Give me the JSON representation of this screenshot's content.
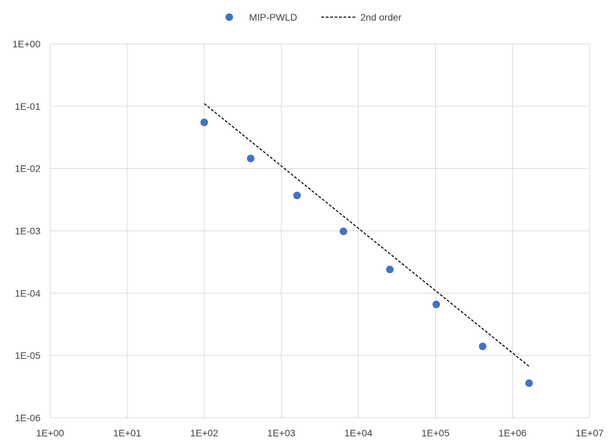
{
  "chart_data": {
    "type": "scatter",
    "xscale": "log",
    "yscale": "log",
    "xlim": [
      1,
      10000000
    ],
    "ylim": [
      1e-06,
      1
    ],
    "xticks": [
      "1E+00",
      "1E+01",
      "1E+02",
      "1E+03",
      "1E+04",
      "1E+05",
      "1E+06",
      "1E+07"
    ],
    "yticks": [
      "1E+00",
      "1E-01",
      "1E-02",
      "1E-03",
      "1E-04",
      "1E-05",
      "1E-06"
    ],
    "grid": true,
    "legend_position": "top-center",
    "series": [
      {
        "name": "MIP-PWLD",
        "kind": "scatter",
        "color": "#4472C4",
        "x": [
          100,
          400,
          1600,
          6400,
          25600,
          102400,
          409600,
          1638400
        ],
        "y": [
          0.055,
          0.0145,
          0.0037,
          0.00098,
          0.00024,
          6.6e-05,
          1.4e-05,
          3.6e-06
        ]
      },
      {
        "name": "2nd order",
        "kind": "line",
        "style": "dashed",
        "color": "#000000",
        "x": [
          100,
          1638400
        ],
        "y": [
          0.11,
          6.7e-06
        ]
      }
    ]
  }
}
